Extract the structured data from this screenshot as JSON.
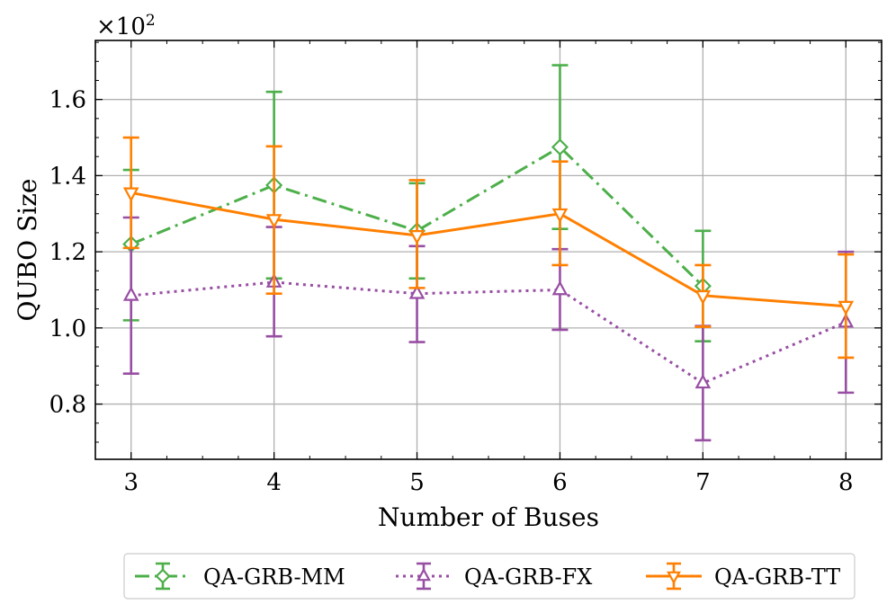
{
  "chart_data": {
    "type": "line",
    "title": "",
    "xlabel": "Number of Buses",
    "ylabel": "QUBO Size",
    "y_multiplier": {
      "base": "×10",
      "exponent": "2"
    },
    "x": [
      3,
      4,
      5,
      6,
      7,
      8
    ],
    "xlim": [
      2.75,
      8.25
    ],
    "ylim": [
      0.655,
      1.755
    ],
    "x_ticks": [
      3,
      4,
      5,
      6,
      7,
      8
    ],
    "x_tick_labels": [
      "3",
      "4",
      "5",
      "6",
      "7",
      "8"
    ],
    "y_ticks": [
      0.8,
      1.0,
      1.2,
      1.4,
      1.6
    ],
    "y_tick_labels": [
      "0.8",
      "1.0",
      "1.2",
      "1.4",
      "1.6"
    ],
    "grid": true,
    "legend_position": "bottom-center",
    "series": [
      {
        "name": "QA-GRB-MM",
        "color": "#4daf4a",
        "line_style": "dashdot",
        "marker": "diamond",
        "x": [
          3,
          4,
          5,
          6,
          7
        ],
        "values": [
          1.22,
          1.375,
          1.255,
          1.475,
          1.11
        ],
        "err_lower": [
          1.02,
          1.13,
          1.13,
          1.26,
          0.965
        ],
        "err_upper": [
          1.415,
          1.62,
          1.38,
          1.69,
          1.255
        ]
      },
      {
        "name": "QA-GRB-FX",
        "color": "#984ea3",
        "line_style": "dotted",
        "marker": "triangle-up",
        "x": [
          3,
          4,
          5,
          6,
          7,
          8
        ],
        "values": [
          1.085,
          1.12,
          1.09,
          1.1,
          0.855,
          1.015
        ],
        "err_lower": [
          0.88,
          0.978,
          0.963,
          0.995,
          0.705,
          0.83
        ],
        "err_upper": [
          1.29,
          1.265,
          1.215,
          1.207,
          1.005,
          1.2
        ]
      },
      {
        "name": "QA-GRB-TT",
        "color": "#ff7f00",
        "line_style": "solid",
        "marker": "triangle-down",
        "x": [
          3,
          4,
          5,
          6,
          7,
          8
        ],
        "values": [
          1.355,
          1.285,
          1.243,
          1.3,
          1.085,
          1.057
        ],
        "err_lower": [
          1.21,
          1.09,
          1.105,
          1.165,
          1.003,
          0.922
        ],
        "err_upper": [
          1.5,
          1.477,
          1.388,
          1.437,
          1.165,
          1.193
        ]
      }
    ]
  }
}
